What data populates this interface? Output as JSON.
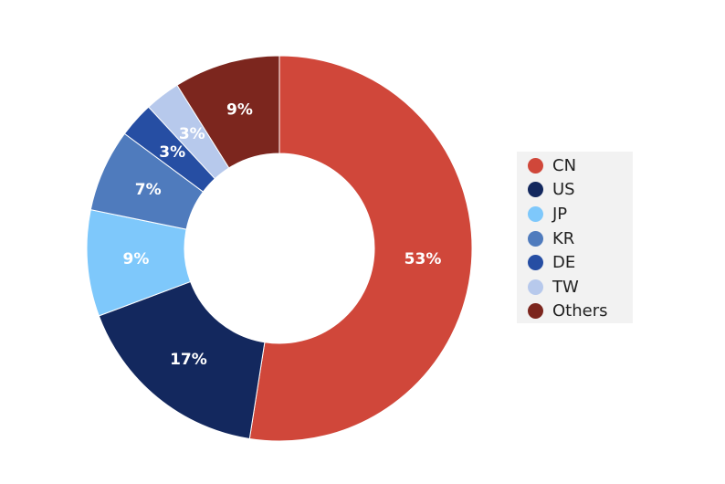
{
  "chart_data": {
    "type": "pie",
    "donut": true,
    "categories": [
      "CN",
      "US",
      "JP",
      "KR",
      "DE",
      "TW",
      "Others"
    ],
    "values": [
      53,
      17,
      9,
      7,
      3,
      3,
      9
    ],
    "labels": [
      "53%",
      "17%",
      "9%",
      "7%",
      "3%",
      "3%",
      "9%"
    ],
    "colors": [
      "#d0473a",
      "#13285e",
      "#7ec8fb",
      "#4f7bbd",
      "#264ea3",
      "#b7c9ec",
      "#7c261e"
    ],
    "start_angle_deg": 0,
    "direction": "clockwise",
    "legend_position": "right",
    "title": ""
  }
}
